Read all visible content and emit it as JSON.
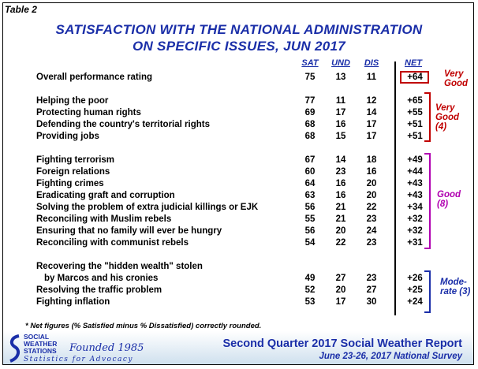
{
  "table_label": "Table 2",
  "title_line1": "SATISFACTION WITH THE NATIONAL ADMINISTRATION",
  "title_line2": "ON SPECIFIC ISSUES, JUN 2017",
  "columns": [
    "SAT",
    "UND",
    "DIS",
    "NET"
  ],
  "rows": [
    {
      "label": "Overall performance rating",
      "sat": "75",
      "und": "13",
      "dis": "11",
      "net": "+64"
    },
    {
      "label": "Helping the poor",
      "sat": "77",
      "und": "11",
      "dis": "12",
      "net": "+65"
    },
    {
      "label": "Protecting human rights",
      "sat": "69",
      "und": "17",
      "dis": "14",
      "net": "+55"
    },
    {
      "label": "Defending the country's territorial rights",
      "sat": "68",
      "und": "16",
      "dis": "17",
      "net": "+51"
    },
    {
      "label": "Providing jobs",
      "sat": "68",
      "und": "15",
      "dis": "17",
      "net": "+51"
    },
    {
      "label": "Fighting terrorism",
      "sat": "67",
      "und": "14",
      "dis": "18",
      "net": "+49"
    },
    {
      "label": "Foreign relations",
      "sat": "60",
      "und": "23",
      "dis": "16",
      "net": "+44"
    },
    {
      "label": "Fighting crimes",
      "sat": "64",
      "und": "16",
      "dis": "20",
      "net": "+43"
    },
    {
      "label": "Eradicating graft and corruption",
      "sat": "63",
      "und": "16",
      "dis": "20",
      "net": "+43"
    },
    {
      "label": "Solving the problem of extra judicial killings or EJK",
      "sat": "56",
      "und": "21",
      "dis": "22",
      "net": "+34"
    },
    {
      "label": "Reconciling with Muslim rebels",
      "sat": "55",
      "und": "21",
      "dis": "23",
      "net": "+32"
    },
    {
      "label": "Ensuring that no family will ever be hungry",
      "sat": "56",
      "und": "20",
      "dis": "24",
      "net": "+32"
    },
    {
      "label": "Reconciling with communist rebels",
      "sat": "54",
      "und": "22",
      "dis": "23",
      "net": "+31"
    },
    {
      "label": "Recovering the \"hidden wealth\" stolen",
      "sat": "",
      "und": "",
      "dis": "",
      "net": ""
    },
    {
      "label": "by Marcos and his cronies",
      "sat": "49",
      "und": "27",
      "dis": "23",
      "net": "+26"
    },
    {
      "label": "Resolving the traffic problem",
      "sat": "52",
      "und": "20",
      "dis": "27",
      "net": "+25"
    },
    {
      "label": "Fighting inflation",
      "sat": "53",
      "und": "17",
      "dis": "30",
      "net": "+24"
    }
  ],
  "groups": {
    "very_good_top": [
      "Very",
      "Good"
    ],
    "very_good_4": [
      "Very",
      "Good",
      "(4)"
    ],
    "good_8": [
      "Good",
      "(8)"
    ],
    "moderate_3": [
      "Mode-",
      "rate (3)"
    ]
  },
  "footnote": "* Net figures  (% Satisfied  minus  % Dissatisfied)  correctly  rounded.",
  "org": {
    "line1": "SOCIAL",
    "line2": "WEATHER",
    "line3": "STATIONS",
    "founded": "Founded 1985",
    "tagline": "Statistics for Advocacy"
  },
  "report_title": "Second Quarter 2017 Social Weather Report",
  "survey_dates": "June 23-26, 2017 National Survey"
}
